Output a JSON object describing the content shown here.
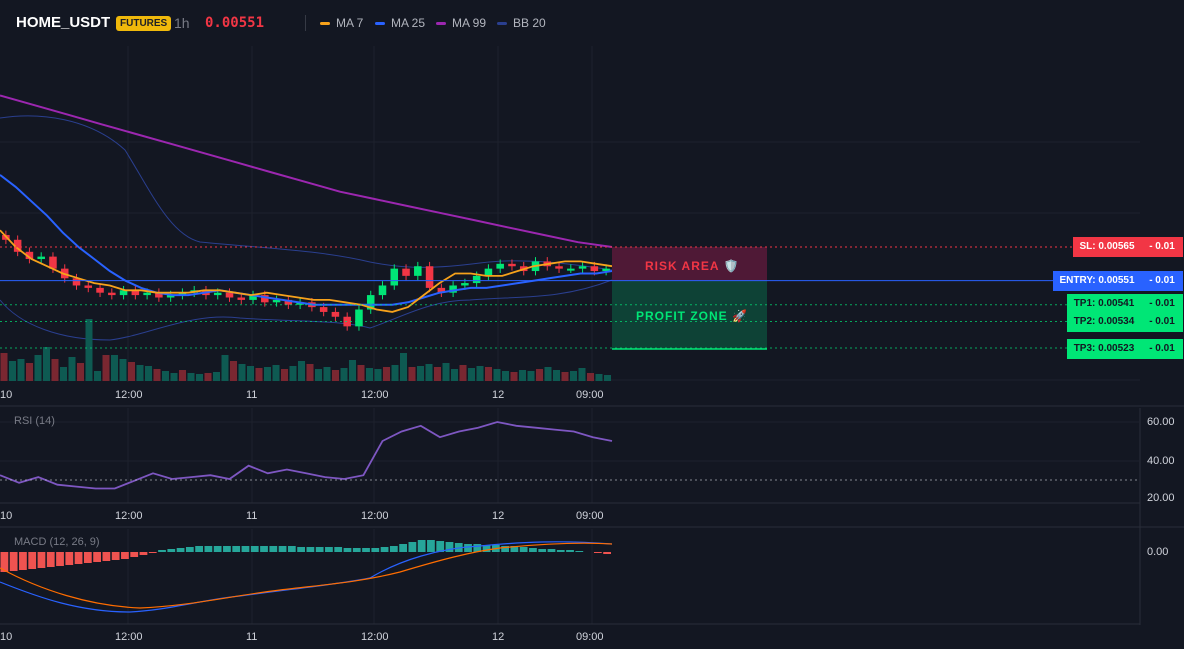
{
  "header": {
    "pair": "HOME_USDT",
    "badge": "FUTURES",
    "timeframe": "1h",
    "price": "0.00551",
    "legend": [
      {
        "label": "MA 7",
        "color": "#f7a21b"
      },
      {
        "label": "MA 25",
        "color": "#2962ff"
      },
      {
        "label": "MA 99",
        "color": "#9c27b0"
      },
      {
        "label": "BB 20",
        "color": "#2a3f8f"
      }
    ]
  },
  "labels": {
    "sl": "SL: 0.00565",
    "entry": "ENTRY: 0.00551",
    "tp1": "TP1: 0.00541",
    "tp2": "TP2: 0.00534",
    "tp3": "TP3: 0.00523",
    "sl_dash": "- 0.01",
    "entry_dash": "- 0.01",
    "tp1_dash": "- 0.01",
    "tp2_dash": "- 0.01",
    "tp3_dash": "- 0.01"
  },
  "zones": {
    "risk": "RISK AREA 🛡️",
    "profit": "PROFIT ZONE 🚀"
  },
  "time_axis": [
    "10",
    "12:00",
    "11",
    "12:00",
    "12",
    "09:00"
  ],
  "rsi": {
    "title": "RSI (14)",
    "ticks": [
      "60.00",
      "40.00",
      "20.00"
    ]
  },
  "macd": {
    "title": "MACD (12, 26, 9)",
    "ticks": [
      "0.00"
    ]
  },
  "colors": {
    "bull": "#26a69a",
    "bull_bright": "#00e676",
    "bear": "#ef5350",
    "bear_bright": "#f23645",
    "ma7": "#f7a21b",
    "ma25": "#2962ff",
    "ma99": "#9c27b0",
    "bb": "#2a3f8f",
    "rsi": "#7e57c2",
    "macd_line": "#2962ff",
    "signal_line": "#ff6d00"
  },
  "chart_data": {
    "type": "line",
    "title": "HOME_USDT 1h",
    "levels": {
      "sl": 0.00565,
      "entry": 0.00551,
      "tp1": 0.00541,
      "tp2": 0.00534,
      "tp3": 0.00523
    },
    "ma7": [
      0.00572,
      0.00565,
      0.0056,
      0.00557,
      0.00554,
      0.00552,
      0.0055,
      0.00549,
      0.00547,
      0.00547,
      0.00546,
      0.00546,
      0.00546,
      0.00547,
      0.00547,
      0.00546,
      0.00545,
      0.00546,
      0.00545,
      0.00544,
      0.00543,
      0.00543,
      0.00542,
      0.00541,
      0.00539,
      0.00538,
      0.0054,
      0.00545,
      0.0055,
      0.00554,
      0.00554,
      0.00553,
      0.00553,
      0.00555,
      0.00557,
      0.00558,
      0.00559,
      0.00559,
      0.00558,
      0.00557
    ],
    "ma25": [
      0.00595,
      0.0059,
      0.00584,
      0.00578,
      0.00571,
      0.00565,
      0.0056,
      0.00555,
      0.00551,
      0.00548,
      0.00546,
      0.00545,
      0.00545,
      0.00546,
      0.00547,
      0.00546,
      0.00545,
      0.00544,
      0.00543,
      0.00542,
      0.00541,
      0.00541,
      0.00541,
      0.00541,
      0.00541,
      0.00541,
      0.00542,
      0.00544,
      0.00546,
      0.00547,
      0.00548,
      0.00548,
      0.00549,
      0.0055,
      0.00551,
      0.00552,
      0.00553,
      0.00554,
      0.00554,
      0.00555
    ],
    "ma99": [
      0.00628,
      0.00624,
      0.0062,
      0.00616,
      0.00612,
      0.00608,
      0.00604,
      0.006,
      0.00596,
      0.00592,
      0.00588,
      0.00585,
      0.00582,
      0.00579,
      0.00576,
      0.00573,
      0.0057,
      0.00567,
      0.00565
    ],
    "rsi_values": [
      32,
      28,
      31,
      27,
      26,
      25,
      25,
      29,
      33,
      30,
      31,
      32,
      30,
      37,
      33,
      35,
      33,
      31,
      30,
      32,
      50,
      55,
      58,
      52,
      55,
      57,
      60,
      58,
      57,
      56,
      55,
      52,
      50
    ]
  }
}
